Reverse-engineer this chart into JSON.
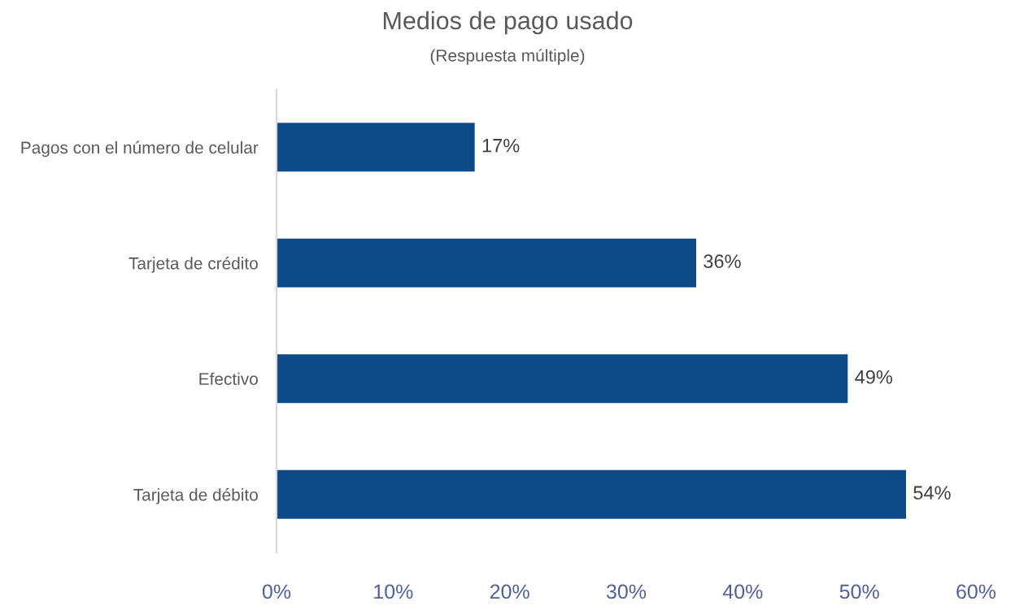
{
  "chart_data": {
    "type": "bar",
    "orientation": "horizontal",
    "title": "Medios de pago usado",
    "subtitle": "(Respuesta múltiple)",
    "categories": [
      "Pagos con el número de celular",
      "Tarjeta de crédito",
      "Efectivo",
      "Tarjeta de débito"
    ],
    "values": [
      17,
      36,
      49,
      54
    ],
    "color": "#0d4a87",
    "value_labels": [
      "17%",
      "36%",
      "49%",
      "54%"
    ],
    "xlim": [
      0,
      60
    ],
    "xticks": [
      {
        "value": 0,
        "label": "0%"
      },
      {
        "value": 10,
        "label": "10%"
      },
      {
        "value": 20,
        "label": "20%"
      },
      {
        "value": 30,
        "label": "30%"
      },
      {
        "value": 40,
        "label": "40%"
      },
      {
        "value": 50,
        "label": "50%"
      },
      {
        "value": 60,
        "label": "60%"
      }
    ],
    "grid": false,
    "legend": false
  }
}
